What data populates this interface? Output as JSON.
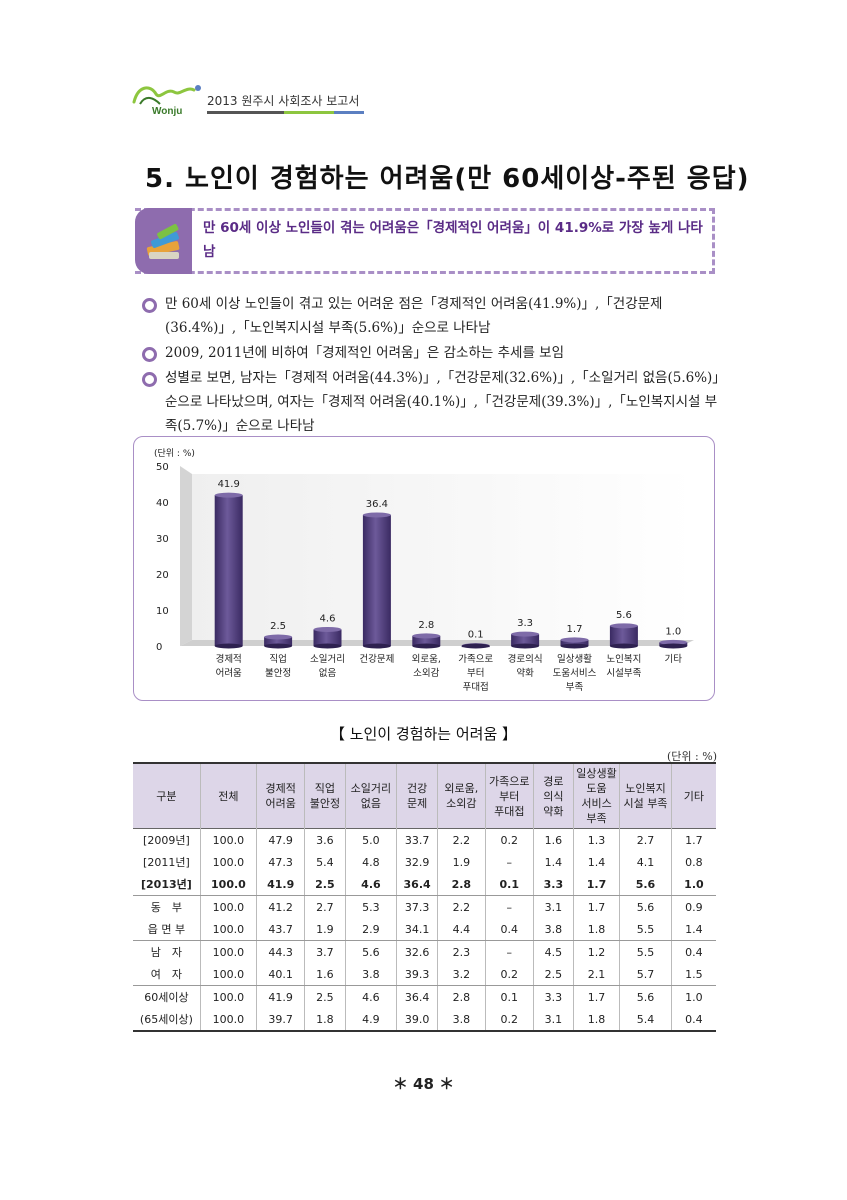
{
  "header": {
    "logo_text": "Wonju",
    "title": "2013 원주시 사회조사 보고서",
    "bar_colors": [
      "#555555",
      "#8dc63f",
      "#5b7fc1"
    ]
  },
  "section_title": "5. 노인이 경험하는 어려움(만 60세이상-주된 응답)",
  "summary": "만 60세 이상 노인들이 겪는 어려움은「경제적인 어려움」이 41.9%로 가장 높게 나타남",
  "bullets": [
    "만 60세 이상 노인들이 겪고 있는 어려운 점은「경제적인 어려움(41.9%)」,「건강문제(36.4%)」,「노인복지시설 부족(5.6%)」순으로 나타남",
    "2009, 2011년에 비하여「경제적인 어려움」은 감소하는 추세를 보임",
    "성별로 보면, 남자는「경제적 어려움(44.3%)」,「건강문제(32.6%)」,「소일거리 없음(5.6%)」순으로 나타났으며, 여자는「경제적 어려움(40.1%)」,「건강문제(39.3%)」,「노인복지시설 부족(5.7%)」순으로 나타남"
  ],
  "chart_data": {
    "type": "bar",
    "unit_label": "(단위 : %)",
    "ylim": [
      0,
      50
    ],
    "yticks": [
      "50",
      "40",
      "30",
      "20",
      "10",
      "0"
    ],
    "categories": [
      [
        "경제적",
        "어려움"
      ],
      [
        "직업",
        "불안정"
      ],
      [
        "소일거리",
        "없음"
      ],
      [
        "건강문제"
      ],
      [
        "외로움,",
        "소외감"
      ],
      [
        "가족으로",
        "부터",
        "푸대접"
      ],
      [
        "경로의식",
        "약화"
      ],
      [
        "일상생활",
        "도움서비스",
        "부족"
      ],
      [
        "노인복지",
        "시설부족"
      ],
      [
        "기타"
      ]
    ],
    "values": [
      41.9,
      2.5,
      4.6,
      36.4,
      2.8,
      0.1,
      3.3,
      1.7,
      5.6,
      1.0
    ],
    "value_labels": [
      "41.9",
      "2.5",
      "4.6",
      "36.4",
      "2.8",
      "0.1",
      "3.3",
      "1.7",
      "5.6",
      "1.0"
    ],
    "bar_color": "#4b3775"
  },
  "table": {
    "title": "【 노인이 경험하는 어려움 】",
    "unit": "(단위 : %)",
    "headers": [
      "구분",
      "전체",
      "경제적\n어려움",
      "직업\n불안정",
      "소일거리\n없음",
      "건강\n문제",
      "외로움,\n소외감",
      "가족으로\n부터\n푸대접",
      "경로\n의식\n약화",
      "일상생활\n도움\n서비스\n부족",
      "노인복지\n시설 부족",
      "기타"
    ],
    "rows": [
      [
        "[2009년]",
        "100.0",
        "47.9",
        "3.6",
        "5.0",
        "33.7",
        "2.2",
        "0.2",
        "1.6",
        "1.3",
        "2.7",
        "1.7"
      ],
      [
        "[2011년]",
        "100.0",
        "47.3",
        "5.4",
        "4.8",
        "32.9",
        "1.9",
        "–",
        "1.4",
        "1.4",
        "4.1",
        "0.8"
      ],
      [
        "[2013년]",
        "100.0",
        "41.9",
        "2.5",
        "4.6",
        "36.4",
        "2.8",
        "0.1",
        "3.3",
        "1.7",
        "5.6",
        "1.0"
      ],
      [
        "동　부",
        "100.0",
        "41.2",
        "2.7",
        "5.3",
        "37.3",
        "2.2",
        "–",
        "3.1",
        "1.7",
        "5.6",
        "0.9"
      ],
      [
        "읍 면 부",
        "100.0",
        "43.7",
        "1.9",
        "2.9",
        "34.1",
        "4.4",
        "0.4",
        "3.8",
        "1.8",
        "5.5",
        "1.4"
      ],
      [
        "남　자",
        "100.0",
        "44.3",
        "3.7",
        "5.6",
        "32.6",
        "2.3",
        "–",
        "4.5",
        "1.2",
        "5.5",
        "0.4"
      ],
      [
        "여　자",
        "100.0",
        "40.1",
        "1.6",
        "3.8",
        "39.3",
        "3.2",
        "0.2",
        "2.5",
        "2.1",
        "5.7",
        "1.5"
      ],
      [
        "60세이상",
        "100.0",
        "41.9",
        "2.5",
        "4.6",
        "36.4",
        "2.8",
        "0.1",
        "3.3",
        "1.7",
        "5.6",
        "1.0"
      ],
      [
        "(65세이상)",
        "100.0",
        "39.7",
        "1.8",
        "4.9",
        "39.0",
        "3.8",
        "0.2",
        "3.1",
        "1.8",
        "5.4",
        "0.4"
      ]
    ],
    "bold_row": 2,
    "group_end_rows": [
      2,
      4,
      6
    ]
  },
  "page_number": "＊ 48 ＊"
}
